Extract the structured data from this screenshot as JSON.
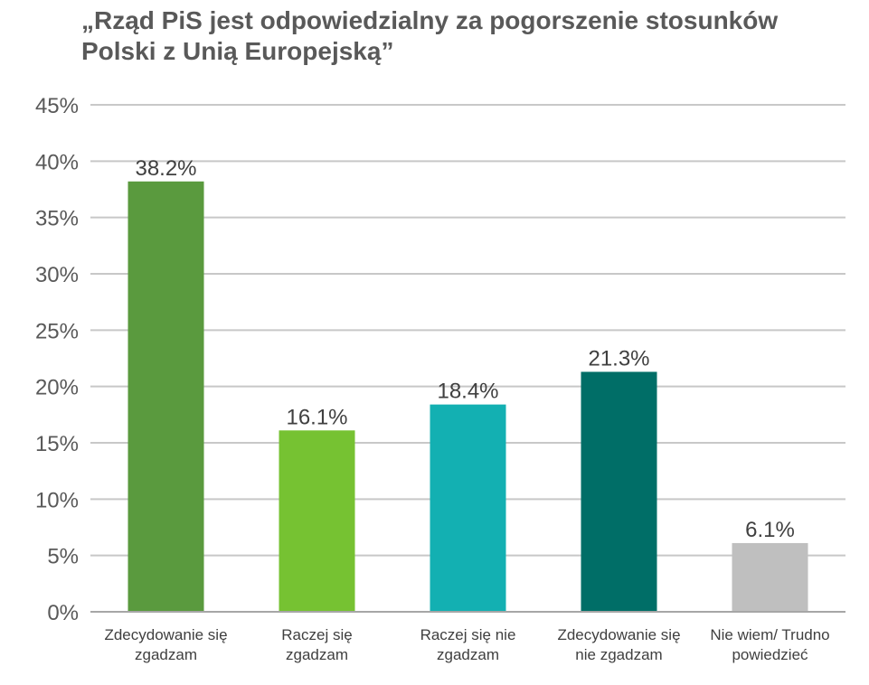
{
  "chart_data": {
    "type": "bar",
    "title": "„Rząd PiS jest odpowiedzialny za pogorszenie stosunków Polski z Unią Europejską”",
    "xlabel": "",
    "ylabel": "",
    "categories": [
      [
        "Zdecydowanie się",
        "zgadzam"
      ],
      [
        "Raczej się",
        "zgadzam"
      ],
      [
        "Raczej się nie",
        "zgadzam"
      ],
      [
        "Zdecydowanie się",
        "nie zgadzam"
      ],
      [
        "Nie wiem/ Trudno",
        "powiedzieć"
      ]
    ],
    "values": [
      38.2,
      16.1,
      18.4,
      21.3,
      6.1
    ],
    "data_labels": [
      "38.2%",
      "16.1%",
      "18.4%",
      "21.3%",
      "6.1%"
    ],
    "bar_colors": [
      "#5a9a3e",
      "#76c232",
      "#13b0b2",
      "#006e67",
      "#bfbfbf"
    ],
    "ylim": [
      0,
      45
    ],
    "yticks": [
      0,
      5,
      10,
      15,
      20,
      25,
      30,
      35,
      40,
      45
    ],
    "ytick_labels": [
      "0%",
      "5%",
      "10%",
      "15%",
      "20%",
      "25%",
      "30%",
      "35%",
      "40%",
      "45%"
    ],
    "grid": true,
    "legend": "none",
    "colors": {
      "grid": "#c8c8c8",
      "axis_text": "#595959",
      "title": "#595959",
      "label_text": "#404040"
    }
  }
}
